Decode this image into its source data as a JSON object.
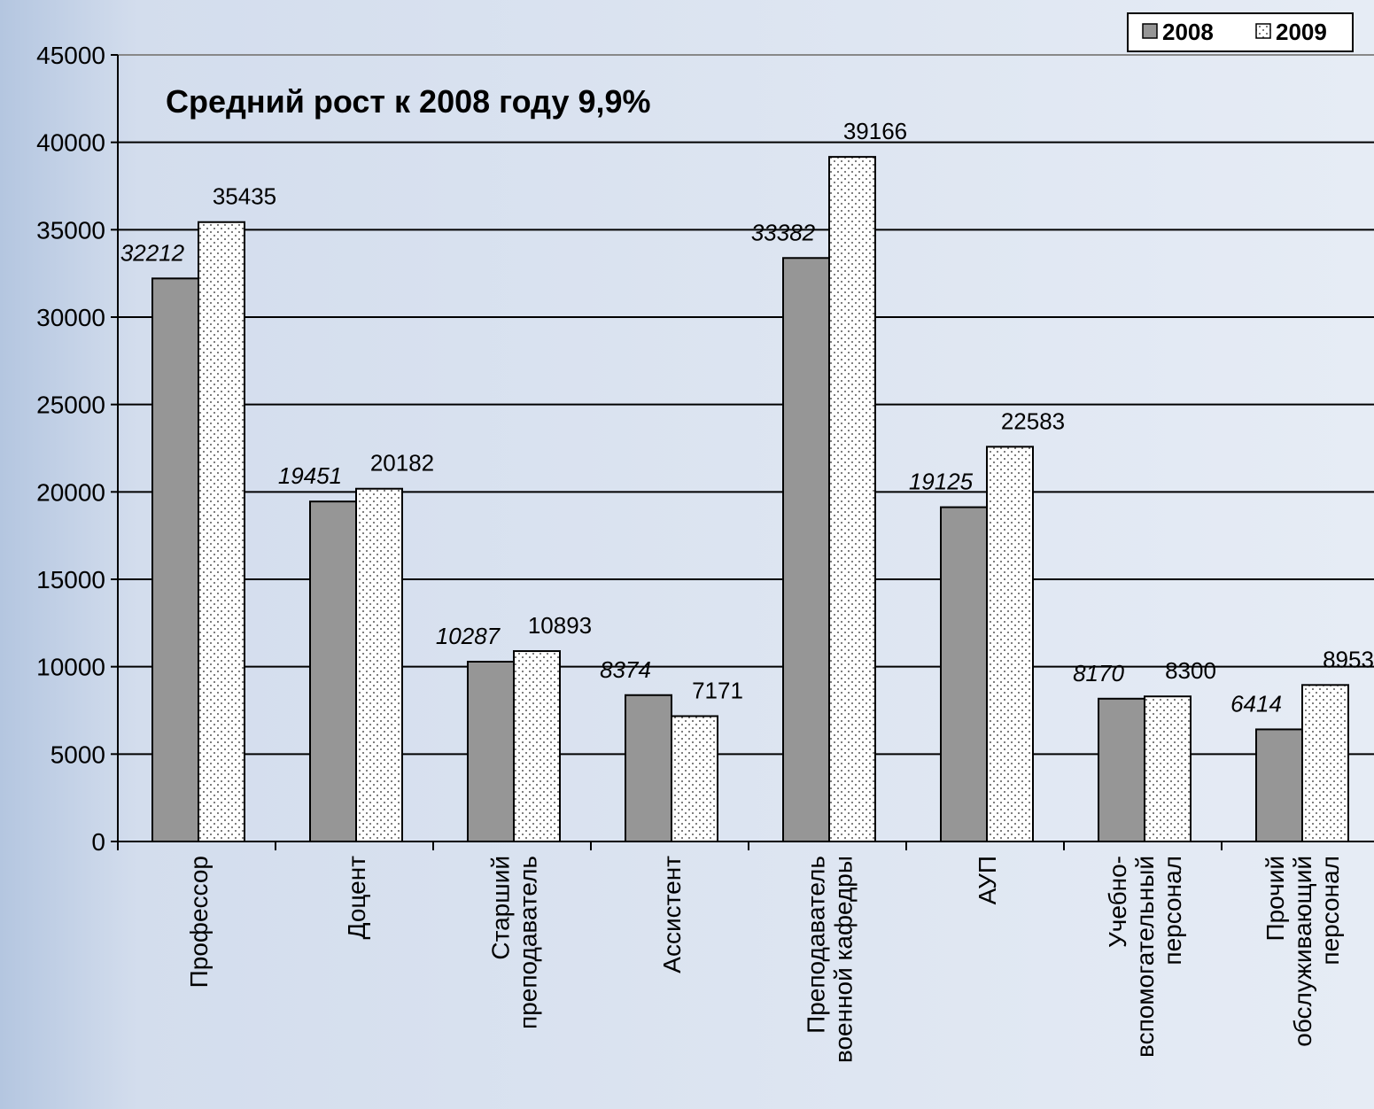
{
  "chart_data": {
    "type": "bar",
    "annotation": "Средний рост к 2008 году 9,9%",
    "categories": [
      "Профессор",
      "Доцент",
      "Старший\nпреподаватель",
      "Ассистент",
      "Преподаватель\nвоенной кафедры",
      "АУП",
      "Учебно-\nвспомогательный\nперсонал",
      "Прочий\nобслуживающий\nперсонал"
    ],
    "series": [
      {
        "name": "2008",
        "color": "#969696",
        "values": [
          32212,
          19451,
          10287,
          8374,
          33382,
          19125,
          8170,
          6414
        ]
      },
      {
        "name": "2009",
        "color": "#ffffff",
        "pattern": "dots",
        "values": [
          35435,
          20182,
          10893,
          7171,
          39166,
          22583,
          8300,
          8953
        ]
      }
    ],
    "ylim": [
      0,
      45000
    ],
    "yticks": [
      0,
      5000,
      10000,
      15000,
      20000,
      25000,
      30000,
      35000,
      40000,
      45000
    ],
    "grid": true,
    "legend": "top-right"
  }
}
